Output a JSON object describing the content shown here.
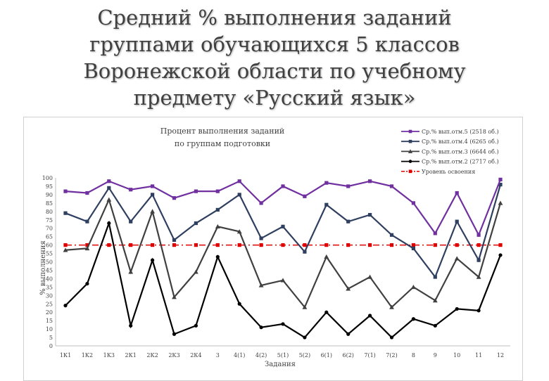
{
  "slide": {
    "title_lines": [
      "Средний % выполнения заданий",
      "группами обучающихся 5 классов",
      "Воронежской области по учебному",
      "предмету «Русский язык»"
    ]
  },
  "chart_data": {
    "type": "line",
    "title_lines": [
      "Процент выполнения заданий",
      "по группам подготовки"
    ],
    "xlabel": "Задания",
    "ylabel": "% выполнения",
    "ylim": [
      0,
      100
    ],
    "ytick_step": 5,
    "grid": false,
    "legend_position": "top-right",
    "categories": [
      "1К1",
      "1К2",
      "1К3",
      "2К1",
      "2К2",
      "2К3",
      "2К4",
      "3",
      "4(1)",
      "4(2)",
      "5(1)",
      "5(2)",
      "6(1)",
      "6(2)",
      "7(1)",
      "7(2)",
      "8",
      "9",
      "10",
      "11",
      "12"
    ],
    "series": [
      {
        "name": "Ср.% вып.отм.5 (2518 об.)",
        "color": "#7030a0",
        "marker": "square",
        "dash": "solid",
        "values": [
          92,
          91,
          98,
          93,
          95,
          88,
          92,
          92,
          98,
          85,
          95,
          89,
          97,
          95,
          98,
          95,
          85,
          67,
          91,
          66,
          99
        ]
      },
      {
        "name": "Ср.% вып.отм.4 (6265 об.)",
        "color": "#2f3f5f",
        "marker": "square",
        "dash": "solid",
        "values": [
          79,
          74,
          94,
          74,
          90,
          63,
          73,
          81,
          90,
          64,
          71,
          56,
          84,
          74,
          78,
          66,
          58,
          41,
          74,
          51,
          96
        ]
      },
      {
        "name": "Ср.% вып.отм.3 (6644 об.)",
        "color": "#404040",
        "marker": "triangle",
        "dash": "solid",
        "values": [
          57,
          58,
          87,
          44,
          80,
          29,
          44,
          71,
          68,
          36,
          39,
          23,
          53,
          34,
          41,
          23,
          35,
          27,
          52,
          41,
          85
        ]
      },
      {
        "name": "Ср.% вып.отм.2 (2717 об.)",
        "color": "#000000",
        "marker": "circle",
        "dash": "solid",
        "values": [
          24,
          37,
          73,
          12,
          51,
          7,
          12,
          53,
          25,
          11,
          13,
          5,
          20,
          7,
          18,
          5,
          16,
          12,
          22,
          21,
          54
        ]
      },
      {
        "name": "Уровень освоения",
        "color": "#e00000",
        "marker": "square",
        "dash": "dashdot",
        "values": [
          60,
          60,
          60,
          60,
          60,
          60,
          60,
          60,
          60,
          60,
          60,
          60,
          60,
          60,
          60,
          60,
          60,
          60,
          60,
          60,
          60
        ]
      }
    ]
  }
}
